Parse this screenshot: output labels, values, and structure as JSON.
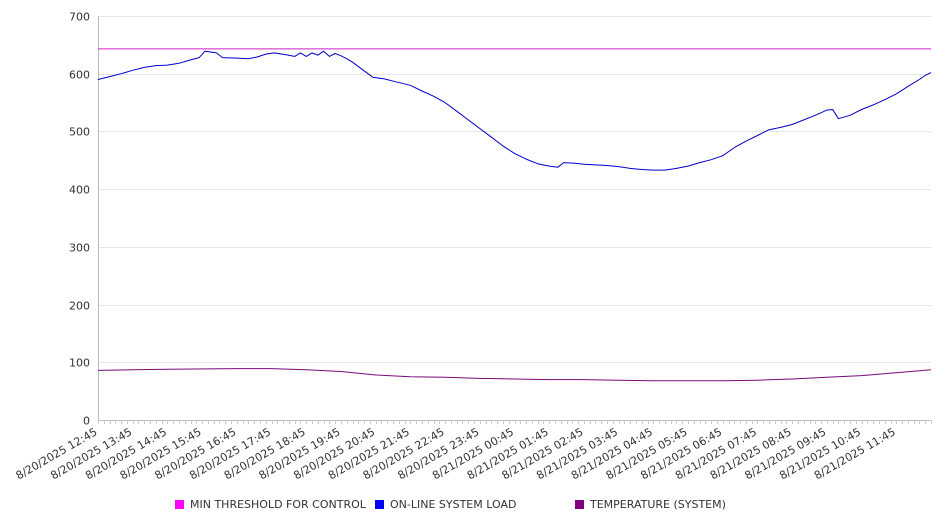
{
  "chart_data": {
    "type": "line",
    "title": "",
    "xlabel": "",
    "ylabel": "",
    "ylim": [
      0,
      700
    ],
    "yticks": [
      0,
      100,
      200,
      300,
      400,
      500,
      600,
      700
    ],
    "grid": true,
    "legend_position": "bottom",
    "x_tick_labels": [
      "8/20/2025 12:45",
      "8/20/2025 13:45",
      "8/20/2025 14:45",
      "8/20/2025 15:45",
      "8/20/2025 16:45",
      "8/20/2025 17:45",
      "8/20/2025 18:45",
      "8/20/2025 19:45",
      "8/20/2025 20:45",
      "8/20/2025 21:45",
      "8/20/2025 22:45",
      "8/20/2025 23:45",
      "8/21/2025 00:45",
      "8/21/2025 01:45",
      "8/21/2025 02:45",
      "8/21/2025 03:45",
      "8/21/2025 04:45",
      "8/21/2025 05:45",
      "8/21/2025 06:45",
      "8/21/2025 07:45",
      "8/21/2025 08:45",
      "8/21/2025 09:45",
      "8/21/2025 10:45",
      "8/21/2025 11:45"
    ],
    "x_start": "2025-08-20T12:45",
    "x_end": "2025-08-21T12:45",
    "series": [
      {
        "name": "MIN THRESHOLD FOR CONTROL",
        "color": "#cc22cc",
        "points": [
          [
            "2025-08-20T12:45",
            643
          ],
          [
            "2025-08-21T12:45",
            643
          ]
        ]
      },
      {
        "name": "ON-LINE SYSTEM LOAD",
        "color": "#0000cc",
        "points": [
          [
            "2025-08-20T12:45",
            590
          ],
          [
            "2025-08-20T13:05",
            595
          ],
          [
            "2025-08-20T13:25",
            600
          ],
          [
            "2025-08-20T13:45",
            606
          ],
          [
            "2025-08-20T14:05",
            611
          ],
          [
            "2025-08-20T14:25",
            614
          ],
          [
            "2025-08-20T14:45",
            615
          ],
          [
            "2025-08-20T15:05",
            618
          ],
          [
            "2025-08-20T15:25",
            624
          ],
          [
            "2025-08-20T15:40",
            628
          ],
          [
            "2025-08-20T15:50",
            639
          ],
          [
            "2025-08-20T16:10",
            636
          ],
          [
            "2025-08-20T16:20",
            628
          ],
          [
            "2025-08-20T16:45",
            627
          ],
          [
            "2025-08-20T17:05",
            626
          ],
          [
            "2025-08-20T17:20",
            629
          ],
          [
            "2025-08-20T17:35",
            634
          ],
          [
            "2025-08-20T17:50",
            636
          ],
          [
            "2025-08-20T18:10",
            633
          ],
          [
            "2025-08-20T18:25",
            630
          ],
          [
            "2025-08-20T18:35",
            636
          ],
          [
            "2025-08-20T18:45",
            630
          ],
          [
            "2025-08-20T18:55",
            636
          ],
          [
            "2025-08-20T19:05",
            632
          ],
          [
            "2025-08-20T19:15",
            639
          ],
          [
            "2025-08-20T19:25",
            630
          ],
          [
            "2025-08-20T19:35",
            635
          ],
          [
            "2025-08-20T19:45",
            631
          ],
          [
            "2025-08-20T19:55",
            626
          ],
          [
            "2025-08-20T20:05",
            620
          ],
          [
            "2025-08-20T20:25",
            605
          ],
          [
            "2025-08-20T20:40",
            594
          ],
          [
            "2025-08-20T21:00",
            591
          ],
          [
            "2025-08-20T21:20",
            586
          ],
          [
            "2025-08-20T21:45",
            580
          ],
          [
            "2025-08-20T22:05",
            570
          ],
          [
            "2025-08-20T22:25",
            561
          ],
          [
            "2025-08-20T22:45",
            550
          ],
          [
            "2025-08-20T23:05",
            535
          ],
          [
            "2025-08-20T23:25",
            520
          ],
          [
            "2025-08-20T23:45",
            505
          ],
          [
            "2025-08-21T00:05",
            490
          ],
          [
            "2025-08-21T00:25",
            475
          ],
          [
            "2025-08-21T00:45",
            462
          ],
          [
            "2025-08-21T01:05",
            452
          ],
          [
            "2025-08-21T01:25",
            444
          ],
          [
            "2025-08-21T01:45",
            440
          ],
          [
            "2025-08-21T02:00",
            438
          ],
          [
            "2025-08-21T02:10",
            446
          ],
          [
            "2025-08-21T02:30",
            445
          ],
          [
            "2025-08-21T02:45",
            443
          ],
          [
            "2025-08-21T03:05",
            442
          ],
          [
            "2025-08-21T03:25",
            441
          ],
          [
            "2025-08-21T03:45",
            439
          ],
          [
            "2025-08-21T04:05",
            436
          ],
          [
            "2025-08-21T04:25",
            434
          ],
          [
            "2025-08-21T04:45",
            433
          ],
          [
            "2025-08-21T05:05",
            433
          ],
          [
            "2025-08-21T05:25",
            436
          ],
          [
            "2025-08-21T05:45",
            440
          ],
          [
            "2025-08-21T06:05",
            446
          ],
          [
            "2025-08-21T06:25",
            451
          ],
          [
            "2025-08-21T06:45",
            458
          ],
          [
            "2025-08-21T07:05",
            472
          ],
          [
            "2025-08-21T07:25",
            483
          ],
          [
            "2025-08-21T07:45",
            493
          ],
          [
            "2025-08-21T08:05",
            503
          ],
          [
            "2025-08-21T08:25",
            507
          ],
          [
            "2025-08-21T08:45",
            512
          ],
          [
            "2025-08-21T09:05",
            520
          ],
          [
            "2025-08-21T09:25",
            528
          ],
          [
            "2025-08-21T09:45",
            537
          ],
          [
            "2025-08-21T09:55",
            538
          ],
          [
            "2025-08-21T10:05",
            522
          ],
          [
            "2025-08-21T10:25",
            528
          ],
          [
            "2025-08-21T10:45",
            538
          ],
          [
            "2025-08-21T11:05",
            546
          ],
          [
            "2025-08-21T11:25",
            555
          ],
          [
            "2025-08-21T11:45",
            565
          ],
          [
            "2025-08-21T12:05",
            578
          ],
          [
            "2025-08-21T12:15",
            584
          ],
          [
            "2025-08-21T12:25",
            590
          ],
          [
            "2025-08-21T12:35",
            597
          ],
          [
            "2025-08-21T12:45",
            602
          ]
        ]
      },
      {
        "name": "TEMPERATURE (SYSTEM)",
        "color": "#7a0a7a",
        "points": [
          [
            "2025-08-20T12:45",
            86
          ],
          [
            "2025-08-20T13:45",
            87
          ],
          [
            "2025-08-20T14:45",
            88
          ],
          [
            "2025-08-20T16:45",
            89
          ],
          [
            "2025-08-20T17:45",
            89
          ],
          [
            "2025-08-20T18:45",
            87
          ],
          [
            "2025-08-20T19:45",
            84
          ],
          [
            "2025-08-20T20:45",
            78
          ],
          [
            "2025-08-20T21:45",
            75
          ],
          [
            "2025-08-20T22:45",
            74
          ],
          [
            "2025-08-20T23:45",
            72
          ],
          [
            "2025-08-21T00:45",
            71
          ],
          [
            "2025-08-21T01:45",
            70
          ],
          [
            "2025-08-21T02:45",
            70
          ],
          [
            "2025-08-21T03:45",
            69
          ],
          [
            "2025-08-21T04:45",
            68
          ],
          [
            "2025-08-21T05:45",
            68
          ],
          [
            "2025-08-21T06:45",
            68
          ],
          [
            "2025-08-21T07:45",
            69
          ],
          [
            "2025-08-21T08:45",
            71
          ],
          [
            "2025-08-21T09:45",
            74
          ],
          [
            "2025-08-21T10:45",
            77
          ],
          [
            "2025-08-21T11:45",
            82
          ],
          [
            "2025-08-21T12:45",
            87
          ]
        ]
      }
    ]
  }
}
